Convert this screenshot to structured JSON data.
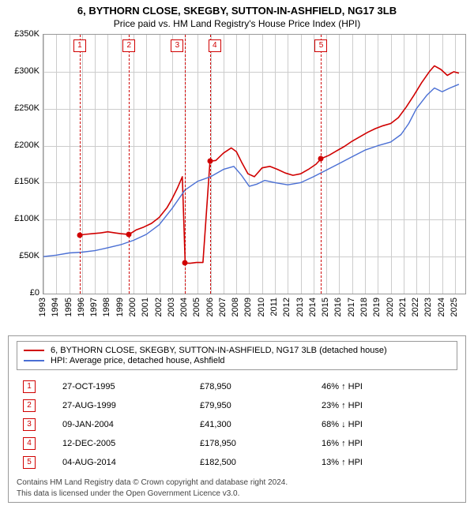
{
  "title": {
    "line1": "6, BYTHORN CLOSE, SKEGBY, SUTTON-IN-ASHFIELD, NG17 3LB",
    "line2": "Price paid vs. HM Land Registry's House Price Index (HPI)"
  },
  "chart": {
    "type": "line",
    "background_color": "#ffffff",
    "border_color": "#999999",
    "grid_color": "#cccccc",
    "event_line_color": "#d00000",
    "x": {
      "min": 1993,
      "max": 2025.8,
      "ticks": [
        1993,
        1994,
        1995,
        1996,
        1997,
        1998,
        1999,
        2000,
        2001,
        2002,
        2003,
        2004,
        2005,
        2006,
        2007,
        2008,
        2009,
        2010,
        2011,
        2012,
        2013,
        2014,
        2015,
        2016,
        2017,
        2018,
        2019,
        2020,
        2021,
        2022,
        2023,
        2024,
        2025
      ],
      "label_fontsize": 11
    },
    "y": {
      "min": 0,
      "max": 350000,
      "tick_step": 50000,
      "ticks": [
        "£0",
        "£50K",
        "£100K",
        "£150K",
        "£200K",
        "£250K",
        "£300K",
        "£350K"
      ],
      "label_fontsize": 11
    },
    "series": [
      {
        "name": "6, BYTHORN CLOSE, SKEGBY, SUTTON-IN-ASHFIELD, NG17 3LB (detached house)",
        "color": "#d00000",
        "line_width": 1.6,
        "data": [
          [
            1995.82,
            78950
          ],
          [
            1996.2,
            80000
          ],
          [
            1996.8,
            81000
          ],
          [
            1997.4,
            82000
          ],
          [
            1998.0,
            83500
          ],
          [
            1998.6,
            82000
          ],
          [
            1999.0,
            81000
          ],
          [
            1999.65,
            79950
          ],
          [
            2000.2,
            86000
          ],
          [
            2000.8,
            90000
          ],
          [
            2001.4,
            95000
          ],
          [
            2002.0,
            103000
          ],
          [
            2002.6,
            116000
          ],
          [
            2003.0,
            128000
          ],
          [
            2003.4,
            142000
          ],
          [
            2003.8,
            158000
          ],
          [
            2004.02,
            41300
          ],
          [
            2004.4,
            41000
          ],
          [
            2004.9,
            42000
          ],
          [
            2005.4,
            42000
          ],
          [
            2005.95,
            178950
          ],
          [
            2006.4,
            180000
          ],
          [
            2007.0,
            190000
          ],
          [
            2007.6,
            197000
          ],
          [
            2008.0,
            192000
          ],
          [
            2008.4,
            178000
          ],
          [
            2008.9,
            162000
          ],
          [
            2009.4,
            158000
          ],
          [
            2010.0,
            170000
          ],
          [
            2010.6,
            172000
          ],
          [
            2011.2,
            168000
          ],
          [
            2011.8,
            163000
          ],
          [
            2012.4,
            160000
          ],
          [
            2013.0,
            162000
          ],
          [
            2013.6,
            168000
          ],
          [
            2014.2,
            175000
          ],
          [
            2014.59,
            182500
          ],
          [
            2015.2,
            187000
          ],
          [
            2015.8,
            193000
          ],
          [
            2016.4,
            199000
          ],
          [
            2017.0,
            206000
          ],
          [
            2017.6,
            212000
          ],
          [
            2018.2,
            218000
          ],
          [
            2018.8,
            223000
          ],
          [
            2019.4,
            227000
          ],
          [
            2020.0,
            230000
          ],
          [
            2020.6,
            238000
          ],
          [
            2021.2,
            252000
          ],
          [
            2021.8,
            268000
          ],
          [
            2022.4,
            285000
          ],
          [
            2023.0,
            300000
          ],
          [
            2023.4,
            308000
          ],
          [
            2023.9,
            303000
          ],
          [
            2024.4,
            295000
          ],
          [
            2024.9,
            300000
          ],
          [
            2025.3,
            298000
          ]
        ]
      },
      {
        "name": "HPI: Average price, detached house, Ashfield",
        "color": "#4a6fd4",
        "line_width": 1.4,
        "data": [
          [
            1993.0,
            50000
          ],
          [
            1994.0,
            52000
          ],
          [
            1995.0,
            55000
          ],
          [
            1996.0,
            56000
          ],
          [
            1997.0,
            58000
          ],
          [
            1998.0,
            62000
          ],
          [
            1999.0,
            66000
          ],
          [
            2000.0,
            72000
          ],
          [
            2001.0,
            80000
          ],
          [
            2002.0,
            93000
          ],
          [
            2003.0,
            115000
          ],
          [
            2004.0,
            140000
          ],
          [
            2005.0,
            152000
          ],
          [
            2006.0,
            158000
          ],
          [
            2007.0,
            168000
          ],
          [
            2007.8,
            172000
          ],
          [
            2008.4,
            160000
          ],
          [
            2009.0,
            145000
          ],
          [
            2009.6,
            148000
          ],
          [
            2010.2,
            153000
          ],
          [
            2011.0,
            150000
          ],
          [
            2012.0,
            147000
          ],
          [
            2013.0,
            150000
          ],
          [
            2014.0,
            158000
          ],
          [
            2015.0,
            167000
          ],
          [
            2016.0,
            176000
          ],
          [
            2017.0,
            185000
          ],
          [
            2018.0,
            194000
          ],
          [
            2019.0,
            200000
          ],
          [
            2020.0,
            205000
          ],
          [
            2020.8,
            215000
          ],
          [
            2021.4,
            230000
          ],
          [
            2022.0,
            250000
          ],
          [
            2022.8,
            268000
          ],
          [
            2023.4,
            278000
          ],
          [
            2024.0,
            273000
          ],
          [
            2024.6,
            278000
          ],
          [
            2025.3,
            283000
          ]
        ]
      }
    ],
    "event_markers": [
      {
        "n": "1",
        "year": 1995.82,
        "value": 78950
      },
      {
        "n": "2",
        "year": 1999.65,
        "value": 79950
      },
      {
        "n": "3",
        "year": 2004.02,
        "value": 41300,
        "box_dx": -10
      },
      {
        "n": "4",
        "year": 2005.95,
        "value": 178950,
        "box_dx": 6
      },
      {
        "n": "5",
        "year": 2014.59,
        "value": 182500
      }
    ]
  },
  "legend": {
    "rows": [
      {
        "color": "#d00000",
        "label": "6, BYTHORN CLOSE, SKEGBY, SUTTON-IN-ASHFIELD, NG17 3LB (detached house)"
      },
      {
        "color": "#4a6fd4",
        "label": "HPI: Average price, detached house, Ashfield"
      }
    ]
  },
  "events_table": {
    "rows": [
      {
        "n": "1",
        "date": "27-OCT-1995",
        "price": "£78,950",
        "delta": "46% ↑ HPI"
      },
      {
        "n": "2",
        "date": "27-AUG-1999",
        "price": "£79,950",
        "delta": "23% ↑ HPI"
      },
      {
        "n": "3",
        "date": "09-JAN-2004",
        "price": "£41,300",
        "delta": "68% ↓ HPI"
      },
      {
        "n": "4",
        "date": "12-DEC-2005",
        "price": "£178,950",
        "delta": "16% ↑ HPI"
      },
      {
        "n": "5",
        "date": "04-AUG-2014",
        "price": "£182,500",
        "delta": "13% ↑ HPI"
      }
    ]
  },
  "footer": {
    "line1": "Contains HM Land Registry data © Crown copyright and database right 2024.",
    "line2": "This data is licensed under the Open Government Licence v3.0."
  }
}
